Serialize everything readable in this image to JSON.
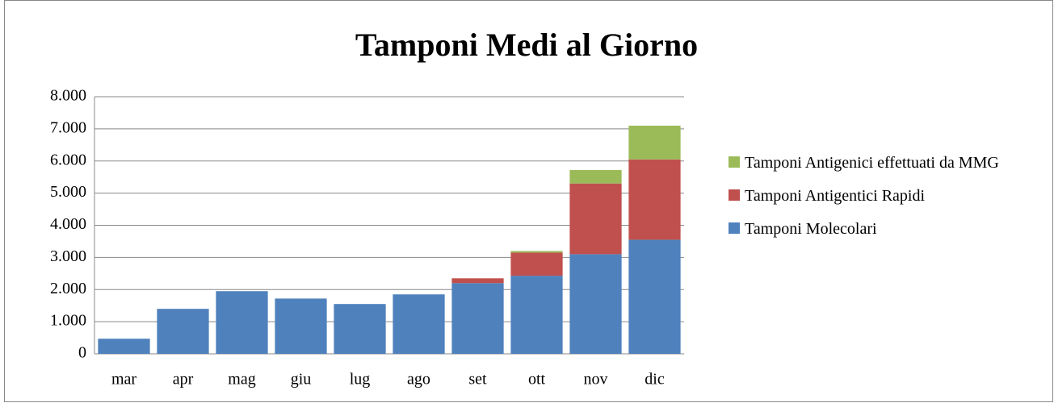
{
  "chart_data": {
    "type": "stacked_bar",
    "title": "Tamponi Medi al Giorno",
    "categories": [
      "mar",
      "apr",
      "mag",
      "giu",
      "lug",
      "ago",
      "set",
      "ott",
      "nov",
      "dic"
    ],
    "series": [
      {
        "name": "Tamponi Molecolari",
        "color": "#4f81bd",
        "values": [
          470,
          1400,
          1950,
          1720,
          1550,
          1850,
          2200,
          2430,
          3100,
          3550
        ]
      },
      {
        "name": "Tamponi Antigentici Rapidi",
        "color": "#c0504d",
        "values": [
          0,
          0,
          0,
          0,
          0,
          0,
          150,
          720,
          2200,
          2500
        ]
      },
      {
        "name": "Tamponi Antigenici effettuati da MMG",
        "color": "#9bbb59",
        "values": [
          0,
          0,
          0,
          0,
          0,
          0,
          0,
          50,
          420,
          1050
        ]
      }
    ],
    "ylim": [
      0,
      8000
    ],
    "yticks": [
      0,
      {
        "value": 1000,
        "label": "1.000"
      },
      {
        "value": 2000,
        "label": "2.000"
      },
      {
        "value": 3000,
        "label": "3.000"
      },
      {
        "value": 4000,
        "label": "4.000"
      },
      {
        "value": 5000,
        "label": "5.000"
      },
      {
        "value": 6000,
        "label": "6.000"
      },
      {
        "value": 7000,
        "label": "7.000"
      },
      {
        "value": 8000,
        "label": "8.000"
      }
    ],
    "grid": true,
    "legend": "right"
  }
}
